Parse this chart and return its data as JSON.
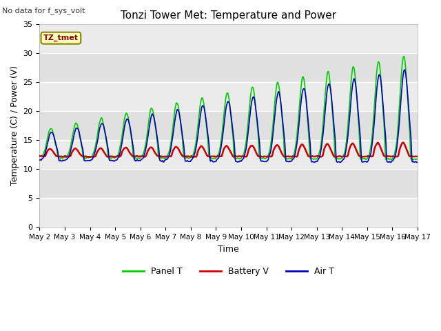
{
  "title": "Tonzi Tower Met: Temperature and Power",
  "xlabel": "Time",
  "ylabel": "Temperature (C) / Power (V)",
  "topleft_text": "No data for f_sys_volt",
  "legend_label_text": "TZ_tmet",
  "legend_entries": [
    "Panel T",
    "Battery V",
    "Air T"
  ],
  "legend_colors": [
    "#00EE00",
    "#DD0000",
    "#0000DD"
  ],
  "ylim": [
    0,
    35
  ],
  "yticks": [
    0,
    5,
    10,
    15,
    20,
    25,
    30,
    35
  ],
  "n_days": 15,
  "start_day": 2,
  "panel_color": "#00DD00",
  "batt_color": "#DD0000",
  "air_color": "#0000CC",
  "bg_light": "#F0F0F0",
  "bg_dark": "#E0E0E0",
  "grid_color": "#DDDDDD"
}
